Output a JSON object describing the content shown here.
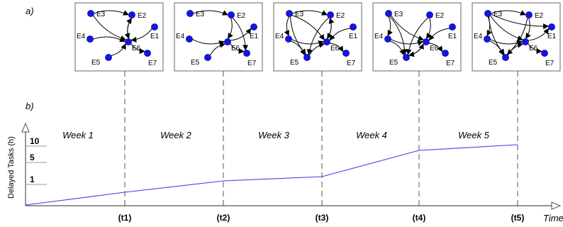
{
  "panel_a_label": "a)",
  "panel_b_label": "b)",
  "graph_nodes": [
    "E1",
    "E2",
    "E3",
    "E4",
    "E5",
    "E6",
    "E7"
  ],
  "snapshots": [
    {
      "edges": [
        [
          "E3",
          "E2"
        ],
        [
          "E3",
          "E6"
        ],
        [
          "E4",
          "E6"
        ],
        [
          "E2",
          "E6"
        ],
        [
          "E1",
          "E6"
        ],
        [
          "E5",
          "E6"
        ],
        [
          "E6",
          "E2"
        ],
        [
          "E6",
          "E7"
        ]
      ]
    },
    {
      "edges": [
        [
          "E3",
          "E2"
        ],
        [
          "E4",
          "E6"
        ],
        [
          "E2",
          "E6"
        ],
        [
          "E6",
          "E1"
        ],
        [
          "E5",
          "E6"
        ],
        [
          "E6",
          "E7"
        ],
        [
          "E2",
          "E7"
        ]
      ]
    },
    {
      "edges": [
        [
          "E3",
          "E2"
        ],
        [
          "E3",
          "E4"
        ],
        [
          "E3",
          "E6"
        ],
        [
          "E3",
          "E5"
        ],
        [
          "E4",
          "E5"
        ],
        [
          "E4",
          "E6"
        ],
        [
          "E2",
          "E6"
        ],
        [
          "E1",
          "E6"
        ],
        [
          "E5",
          "E6"
        ],
        [
          "E6",
          "E2"
        ],
        [
          "E6",
          "E7"
        ],
        [
          "E2",
          "E5"
        ]
      ]
    },
    {
      "edges": [
        [
          "E3",
          "E4"
        ],
        [
          "E3",
          "E6"
        ],
        [
          "E4",
          "E5"
        ],
        [
          "E4",
          "E6"
        ],
        [
          "E2",
          "E6"
        ],
        [
          "E1",
          "E6"
        ],
        [
          "E6",
          "E5"
        ],
        [
          "E5",
          "E6"
        ],
        [
          "E6",
          "E7"
        ],
        [
          "E2",
          "E5"
        ],
        [
          "E3",
          "E5"
        ]
      ]
    },
    {
      "edges": [
        [
          "E3",
          "E2"
        ],
        [
          "E3",
          "E1"
        ],
        [
          "E3",
          "E4"
        ],
        [
          "E3",
          "E6"
        ],
        [
          "E4",
          "E5"
        ],
        [
          "E4",
          "E6"
        ],
        [
          "E2",
          "E6"
        ],
        [
          "E6",
          "E1"
        ],
        [
          "E5",
          "E6"
        ],
        [
          "E6",
          "E7"
        ],
        [
          "E2",
          "E5"
        ],
        [
          "E3",
          "E5"
        ]
      ]
    }
  ],
  "chart_data": {
    "type": "line",
    "ylabel": "Delayed Tasks (h)",
    "xlabel": "Time",
    "y_ticks": [
      "10",
      "5",
      "1"
    ],
    "time_marks": [
      "(t1)",
      "(t2)",
      "(t3)",
      "(t4)",
      "(t5)"
    ],
    "weeks": [
      "Week 1",
      "Week 2",
      "Week 3",
      "Week 4",
      "Week 5"
    ],
    "line_color": "#4040e0",
    "node_color": "#1414e6"
  }
}
